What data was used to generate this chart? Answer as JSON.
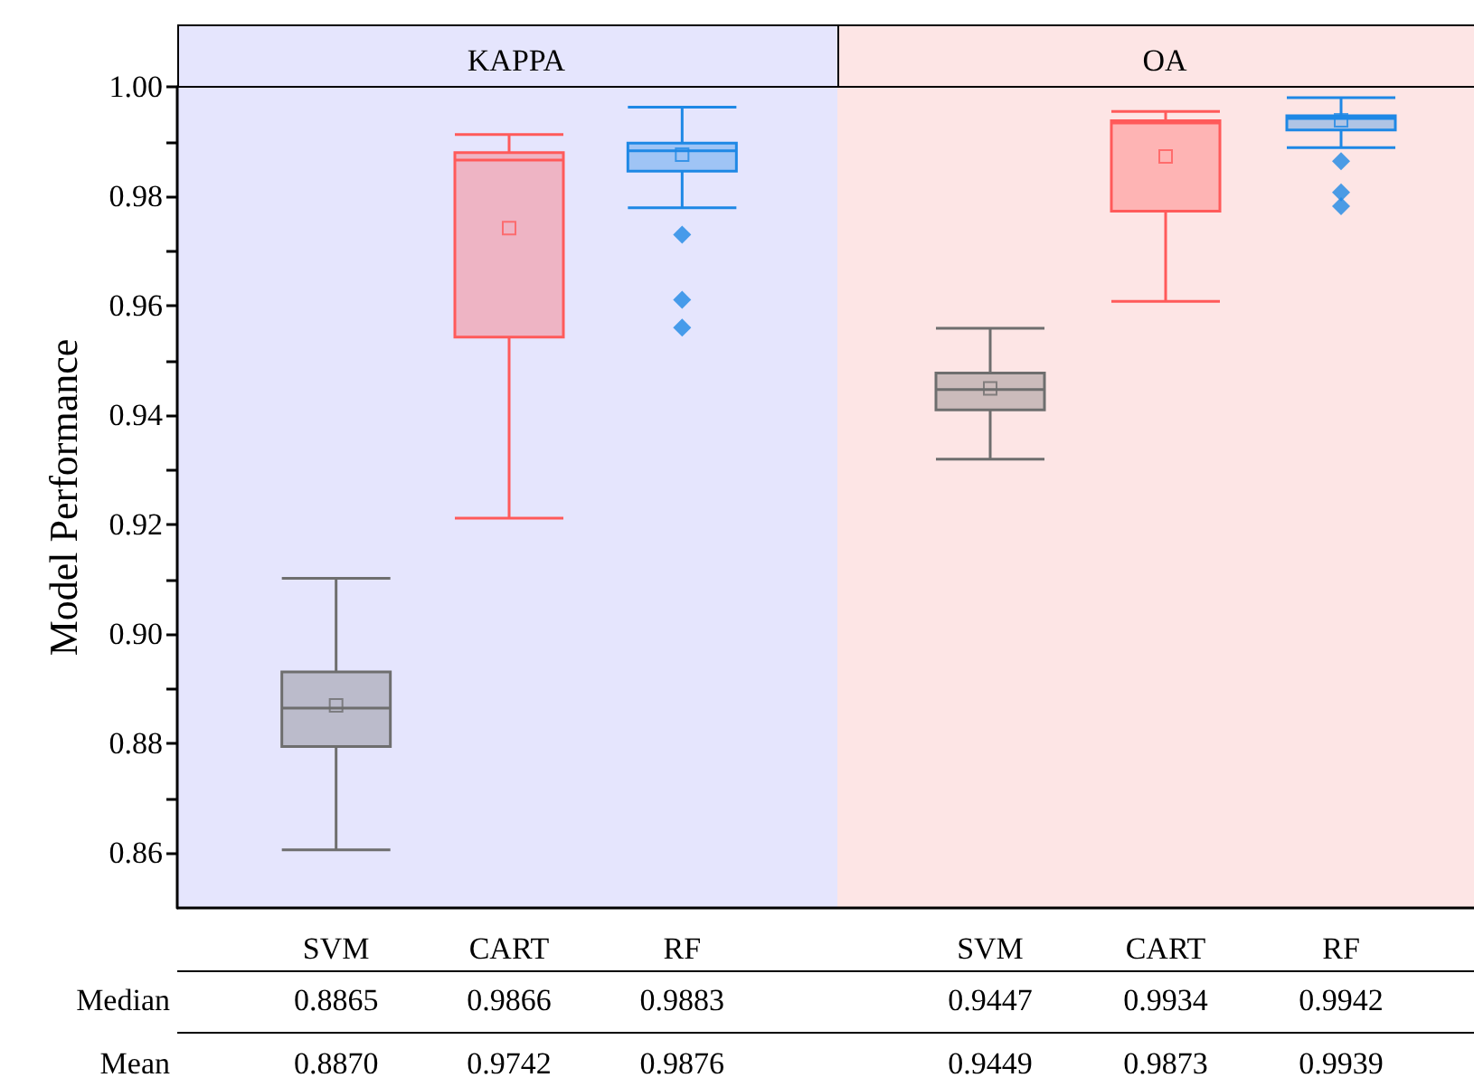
{
  "chart_data": [
    {
      "type": "box",
      "title": "KAPPA",
      "ylabel": "Model Performance",
      "categories": [
        "SVM",
        "CART",
        "RF"
      ],
      "colors": [
        "#6e6e6e",
        "#ff5a5a",
        "#1e88e5"
      ],
      "boxes": [
        {
          "low": 0.8606,
          "q1": 0.8795,
          "median": 0.8865,
          "q3": 0.8931,
          "high": 0.9102,
          "mean": 0.887
        },
        {
          "low": 0.9212,
          "q1": 0.9543,
          "median": 0.9866,
          "q3": 0.988,
          "high": 0.9913,
          "mean": 0.9742
        },
        {
          "low": 0.9779,
          "q1": 0.9846,
          "median": 0.9883,
          "q3": 0.9897,
          "high": 0.9963,
          "mean": 0.9876,
          "outliers": [
            0.973,
            0.9611,
            0.956
          ]
        }
      ],
      "ylim": [
        0.85,
        1.0
      ],
      "yticks": [
        {
          "value": 0.86,
          "label": "0.86"
        },
        {
          "value": 0.87,
          "label": null
        },
        {
          "value": 0.88,
          "label": "0.88"
        },
        {
          "value": 0.89,
          "label": null
        },
        {
          "value": 0.9,
          "label": "0.90"
        },
        {
          "value": 0.91,
          "label": null
        },
        {
          "value": 0.92,
          "label": "0.92"
        },
        {
          "value": 0.93,
          "label": null
        },
        {
          "value": 0.94,
          "label": "0.94"
        },
        {
          "value": 0.95,
          "label": null
        },
        {
          "value": 0.96,
          "label": "0.96"
        },
        {
          "value": 0.97,
          "label": null
        },
        {
          "value": 0.98,
          "label": "0.98"
        },
        {
          "value": 0.99,
          "label": null
        },
        {
          "value": 1.0,
          "label": "1.00"
        }
      ],
      "value_labels": [
        [
          "0.8865",
          "0.8870"
        ],
        [
          "0.9866",
          "0.9742"
        ],
        [
          "0.9883",
          "0.9876"
        ]
      ],
      "annotations": [
        "Median",
        "Mean"
      ]
    },
    {
      "type": "box",
      "title": "OA",
      "categories": [
        "SVM",
        "CART",
        "RF"
      ],
      "colors": [
        "#6e6e6e",
        "#ff5a5a",
        "#1e88e5"
      ],
      "boxes": [
        {
          "low": 0.932,
          "q1": 0.941,
          "median": 0.9447,
          "q3": 0.9477,
          "high": 0.9559,
          "mean": 0.9449
        },
        {
          "low": 0.9608,
          "q1": 0.9773,
          "median": 0.9934,
          "q3": 0.9938,
          "high": 0.9955,
          "mean": 0.9873
        },
        {
          "low": 0.9889,
          "q1": 0.9921,
          "median": 0.9942,
          "q3": 0.9947,
          "high": 0.998,
          "mean": 0.9939,
          "outliers": [
            0.9864,
            0.9807,
            0.9782
          ]
        }
      ],
      "ylim": [
        0.85,
        1.0
      ],
      "tick_labels": "x",
      "value_labels": [
        [
          "0.9447",
          "0.9449"
        ],
        [
          "0.9934",
          "0.9873"
        ],
        [
          "0.9942",
          "0.9939"
        ]
      ]
    }
  ]
}
